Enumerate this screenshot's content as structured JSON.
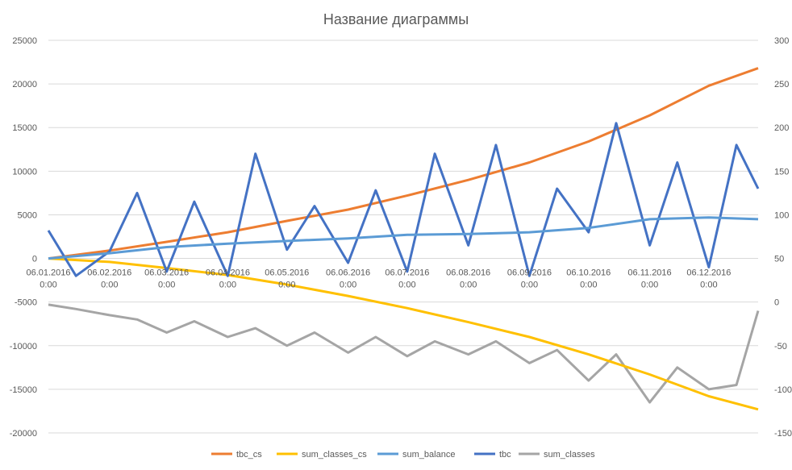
{
  "chart_data": {
    "type": "line",
    "title": "Название диаграммы",
    "y_left": {
      "ticks": [
        25000,
        20000,
        15000,
        10000,
        5000,
        0,
        -5000,
        -10000,
        -15000,
        -20000
      ],
      "min": -20000,
      "max": 25000
    },
    "y_right": {
      "ticks": [
        300,
        250,
        200,
        150,
        100,
        50,
        0,
        -50,
        -100,
        -150
      ],
      "min": -150,
      "max": 300
    },
    "x_range": [
      "06.01.2016",
      "31.12.2016"
    ],
    "x_tick_labels": [
      {
        "date": "06.01.2016",
        "time": "0:00"
      },
      {
        "date": "06.02.2016",
        "time": "0:00"
      },
      {
        "date": "06.03.2016",
        "time": "0:00"
      },
      {
        "date": "06.04.2016",
        "time": "0:00"
      },
      {
        "date": "06.05.2016",
        "time": "0:00"
      },
      {
        "date": "06.06.2016",
        "time": "0:00"
      },
      {
        "date": "06.07.2016",
        "time": "0:00"
      },
      {
        "date": "06.08.2016",
        "time": "0:00"
      },
      {
        "date": "06.09.2016",
        "time": "0:00"
      },
      {
        "date": "06.10.2016",
        "time": "0:00"
      },
      {
        "date": "06.11.2016",
        "time": "0:00"
      },
      {
        "date": "06.12.2016",
        "time": "0:00"
      }
    ],
    "grid": "horizontal",
    "legend_position": "bottom",
    "series": [
      {
        "name": "tbc_cs",
        "axis": "left",
        "color": "#ED7D31",
        "x": [
          "06.01.2016",
          "06.02.2016",
          "06.03.2016",
          "06.04.2016",
          "06.05.2016",
          "06.06.2016",
          "06.07.2016",
          "06.08.2016",
          "06.09.2016",
          "06.10.2016",
          "06.11.2016",
          "06.12.2016",
          "31.12.2016"
        ],
        "values": [
          0,
          900,
          1900,
          3000,
          4300,
          5600,
          7200,
          9000,
          11000,
          13400,
          16400,
          19800,
          21800
        ]
      },
      {
        "name": "sum_classes_cs",
        "axis": "left",
        "color": "#FFC000",
        "x": [
          "06.01.2016",
          "06.02.2016",
          "06.03.2016",
          "06.04.2016",
          "06.05.2016",
          "06.06.2016",
          "06.07.2016",
          "06.08.2016",
          "06.09.2016",
          "06.10.2016",
          "06.11.2016",
          "06.12.2016",
          "31.12.2016"
        ],
        "values": [
          0,
          -400,
          -1100,
          -1900,
          -3000,
          -4300,
          -5700,
          -7300,
          -9000,
          -11000,
          -13300,
          -15800,
          -17300
        ]
      },
      {
        "name": "sum_balance",
        "axis": "left",
        "color": "#5B9BD5",
        "x": [
          "06.01.2016",
          "06.02.2016",
          "06.03.2016",
          "06.04.2016",
          "06.05.2016",
          "06.06.2016",
          "06.07.2016",
          "06.08.2016",
          "06.09.2016",
          "06.10.2016",
          "06.11.2016",
          "06.12.2016",
          "31.12.2016"
        ],
        "values": [
          0,
          600,
          1300,
          1700,
          2000,
          2300,
          2700,
          2800,
          3000,
          3500,
          4500,
          4700,
          4500
        ]
      },
      {
        "name": "tbc",
        "axis": "right",
        "color": "#4472C4",
        "x": [
          "06.01.2016",
          "20.01.2016",
          "06.02.2016",
          "20.02.2016",
          "06.03.2016",
          "20.03.2016",
          "06.04.2016",
          "20.04.2016",
          "06.05.2016",
          "20.05.2016",
          "06.06.2016",
          "20.06.2016",
          "06.07.2016",
          "20.07.2016",
          "06.08.2016",
          "20.08.2016",
          "06.09.2016",
          "20.09.2016",
          "06.10.2016",
          "20.10.2016",
          "06.11.2016",
          "20.11.2016",
          "06.12.2016",
          "20.12.2016",
          "31.12.2016"
        ],
        "values": [
          82,
          30,
          58,
          125,
          35,
          115,
          30,
          170,
          60,
          110,
          45,
          128,
          35,
          170,
          65,
          180,
          30,
          130,
          80,
          205,
          65,
          160,
          40,
          180,
          130
        ]
      },
      {
        "name": "sum_classes",
        "axis": "right",
        "color": "#A5A5A5",
        "x": [
          "06.01.2016",
          "20.01.2016",
          "06.02.2016",
          "20.02.2016",
          "06.03.2016",
          "20.03.2016",
          "06.04.2016",
          "20.04.2016",
          "06.05.2016",
          "20.05.2016",
          "06.06.2016",
          "20.06.2016",
          "06.07.2016",
          "20.07.2016",
          "06.08.2016",
          "20.08.2016",
          "06.09.2016",
          "20.09.2016",
          "06.10.2016",
          "20.10.2016",
          "06.11.2016",
          "20.11.2016",
          "06.12.2016",
          "20.12.2016",
          "31.12.2016"
        ],
        "values": [
          -3,
          -8,
          -15,
          -20,
          -35,
          -22,
          -40,
          -30,
          -50,
          -35,
          -58,
          -40,
          -62,
          -45,
          -60,
          -45,
          -70,
          -55,
          -90,
          -60,
          -115,
          -75,
          -100,
          -95,
          -10
        ]
      }
    ]
  }
}
